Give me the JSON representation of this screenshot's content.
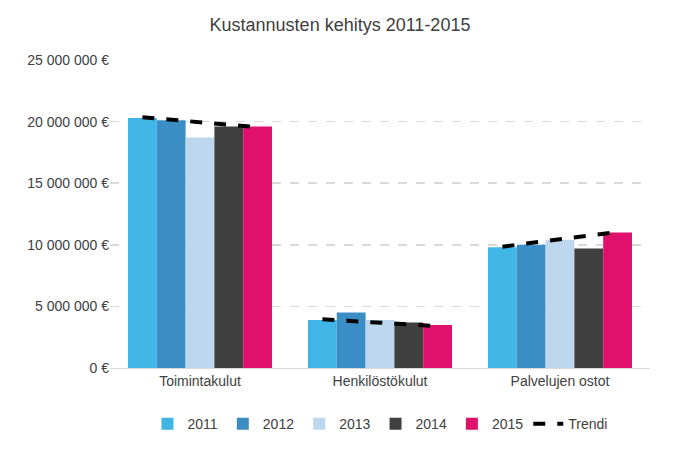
{
  "chart_data": {
    "type": "bar",
    "title": "Kustannusten kehitys 2011-2015",
    "categories": [
      "Toimintakulut",
      "Henkilöstökulut",
      "Palvelujen ostot"
    ],
    "series": [
      {
        "name": "2011",
        "color": "#41b6e6",
        "values": [
          20300000,
          3900000,
          9800000
        ]
      },
      {
        "name": "2012",
        "color": "#3a8dc5",
        "values": [
          20100000,
          4500000,
          10000000
        ]
      },
      {
        "name": "2013",
        "color": "#bdd7ee",
        "values": [
          18700000,
          3900000,
          10400000
        ]
      },
      {
        "name": "2014",
        "color": "#404040",
        "values": [
          19600000,
          3700000,
          9700000
        ]
      },
      {
        "name": "2015",
        "color": "#e0106d",
        "values": [
          19600000,
          3500000,
          11000000
        ]
      },
      {
        "name": "Trendi",
        "type": "line",
        "line_style": "dashed",
        "color": "#000000",
        "values": [
          [
            20350000,
            20150000,
            19950000,
            19750000,
            19550000
          ],
          [
            3950000,
            3800000,
            3650000,
            3500000,
            3400000
          ],
          [
            9850000,
            10150000,
            10450000,
            10750000,
            11050000
          ]
        ]
      }
    ],
    "ylim": [
      0,
      25000000
    ],
    "yticks": [
      {
        "value": 0,
        "label": "0 €"
      },
      {
        "value": 5000000,
        "label": "5 000 000 €"
      },
      {
        "value": 10000000,
        "label": "10 000 000 €"
      },
      {
        "value": 15000000,
        "label": "15 000 000 €"
      },
      {
        "value": 20000000,
        "label": "20 000 000 €"
      },
      {
        "value": 25000000,
        "label": "25 000 000 €"
      }
    ],
    "grid": true,
    "legend": "bottom"
  }
}
